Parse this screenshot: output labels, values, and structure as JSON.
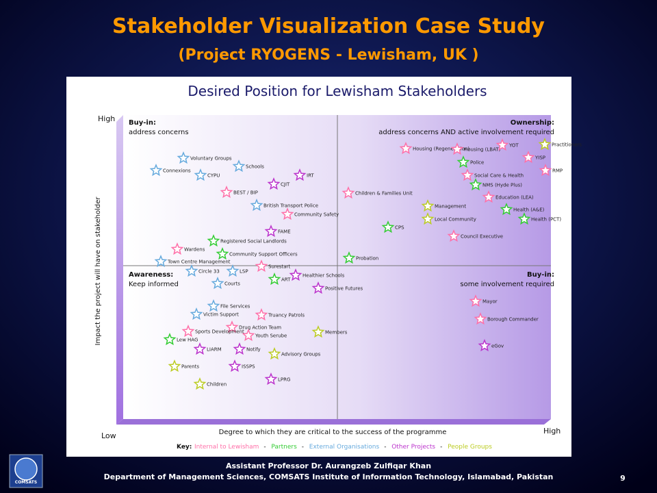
{
  "slide": {
    "title": "Stakeholder Visualization Case Study",
    "subtitle": "(Project RYOGENS - Lewisham, UK )",
    "footer": {
      "author": "Assistant Professor Dr. Aurangzeb Zulfiqar Khan",
      "department": "Department of Management Sciences, COMSATS Institute of Information Technology, Islamabad, Pakistan",
      "page": "9",
      "logo": "COMSATS"
    }
  },
  "diagram": {
    "title": "Desired Position for Lewisham Stakeholders",
    "y_axis": {
      "label": "Impact the project will have on stakeholder",
      "high": "High",
      "low": "Low"
    },
    "x_axis": {
      "label": "Degree to which they are critical to the success of the programme",
      "high": "High"
    },
    "quadrants": [
      {
        "heading": "Buy-in:",
        "text": "address concerns"
      },
      {
        "heading": "Ownership:",
        "text": "address concerns AND active involvement required"
      },
      {
        "heading": "Awareness:",
        "text": "Keep informed"
      },
      {
        "heading": "Buy-in:",
        "text": "some involvement required"
      }
    ],
    "key": {
      "label": "Key:",
      "separator": "-",
      "groups": [
        {
          "name": "Internal to Lewisham",
          "color": "#ff6fa8"
        },
        {
          "name": "Partners",
          "color": "#33cc33"
        },
        {
          "name": "External Organisations",
          "color": "#66aadd"
        },
        {
          "name": "Other Projects",
          "color": "#bb33cc"
        },
        {
          "name": "People Groups",
          "color": "#bbcc22"
        }
      ]
    },
    "nodes": [
      {
        "label": "Voluntary Groups"
      },
      {
        "label": "Connexions"
      },
      {
        "label": "Schools"
      },
      {
        "label": "CYPU"
      },
      {
        "label": "IRT"
      },
      {
        "label": "CJIT"
      },
      {
        "label": "BEST / BIP"
      },
      {
        "label": "Children & Families Unit"
      },
      {
        "label": "British Transport Police"
      },
      {
        "label": "Community Safety"
      },
      {
        "label": "FAME"
      },
      {
        "label": "Registered Social Landlords"
      },
      {
        "label": "Wardens"
      },
      {
        "label": "Community Support Officers"
      },
      {
        "label": "Town Centre Management"
      },
      {
        "label": "Surestart"
      },
      {
        "label": "Circle 33"
      },
      {
        "label": "LSP"
      },
      {
        "label": "Healthier Schools"
      },
      {
        "label": "ART"
      },
      {
        "label": "Courts"
      },
      {
        "label": "Positive Futures"
      },
      {
        "label": "Probation"
      },
      {
        "label": "CPS"
      },
      {
        "label": "Management"
      },
      {
        "label": "Local Community"
      },
      {
        "label": "Council Executive"
      },
      {
        "label": "Housing (Regeneration)"
      },
      {
        "label": "Housing (LBAT)"
      },
      {
        "label": "Police"
      },
      {
        "label": "YOT"
      },
      {
        "label": "Practitioners"
      },
      {
        "label": "YISP"
      },
      {
        "label": "RMP"
      },
      {
        "label": "Social Care & Health"
      },
      {
        "label": "NMS (Hyde Plus)"
      },
      {
        "label": "Education (LEA)"
      },
      {
        "label": "Health (A&E)"
      },
      {
        "label": "Health (PCT)"
      },
      {
        "label": "Mayor"
      },
      {
        "label": "Borough Commander"
      },
      {
        "label": "eGov"
      },
      {
        "label": "File Services"
      },
      {
        "label": "Victim Support"
      },
      {
        "label": "Truancy Patrols"
      },
      {
        "label": "Drug Action Team"
      },
      {
        "label": "Sports Development"
      },
      {
        "label": "Youth Serube"
      },
      {
        "label": "Members"
      },
      {
        "label": "Lew HAG"
      },
      {
        "label": "LIARM"
      },
      {
        "label": "Notify"
      },
      {
        "label": "Advisory Groups"
      },
      {
        "label": "Parents"
      },
      {
        "label": "ISSPS"
      },
      {
        "label": "LPRG"
      },
      {
        "label": "Children"
      }
    ]
  }
}
